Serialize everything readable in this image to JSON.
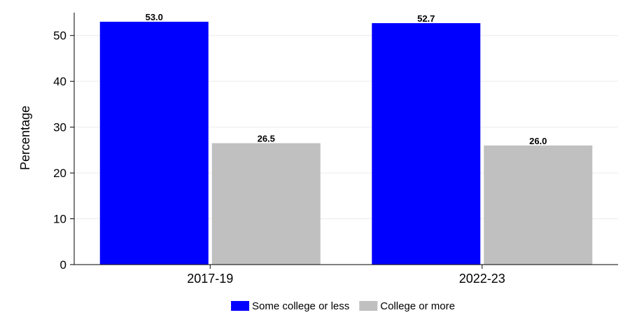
{
  "chart_data": {
    "type": "bar",
    "title": "",
    "xlabel": "",
    "ylabel": "Percentage",
    "ylim": [
      0,
      55
    ],
    "yticks": [
      0,
      10,
      20,
      30,
      40,
      50
    ],
    "grid": true,
    "legend_position": "bottom",
    "categories": [
      "2017-19",
      "2022-23"
    ],
    "series": [
      {
        "name": "Some college or less",
        "color": "#0000ff",
        "values": [
          53.0,
          52.7
        ],
        "labels": [
          "53.0",
          "52.7"
        ]
      },
      {
        "name": "College or more",
        "color": "#c0c0c0",
        "values": [
          26.5,
          26.0
        ],
        "labels": [
          "26.5",
          "26.0"
        ]
      }
    ]
  }
}
